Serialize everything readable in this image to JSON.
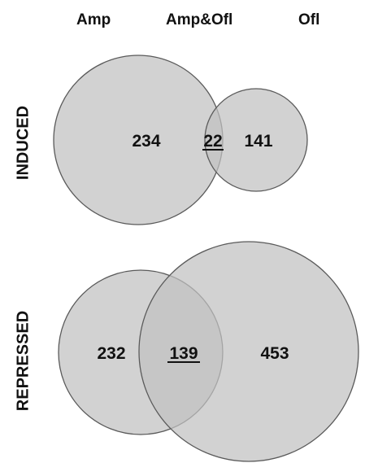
{
  "headers": {
    "left": "Amp",
    "middle": "Amp&Ofl",
    "right": "Ofl"
  },
  "induced": {
    "label": "INDUCED",
    "amp_only": "234",
    "overlap": "22",
    "ofl_only": "141"
  },
  "repressed": {
    "label": "REPRESSED",
    "amp_only": "232",
    "overlap": "139",
    "ofl_only": "453"
  },
  "colors": {
    "circle_fill": "#c8c8c8",
    "circle_stroke": "#5a5a5a",
    "text": "#111111"
  }
}
